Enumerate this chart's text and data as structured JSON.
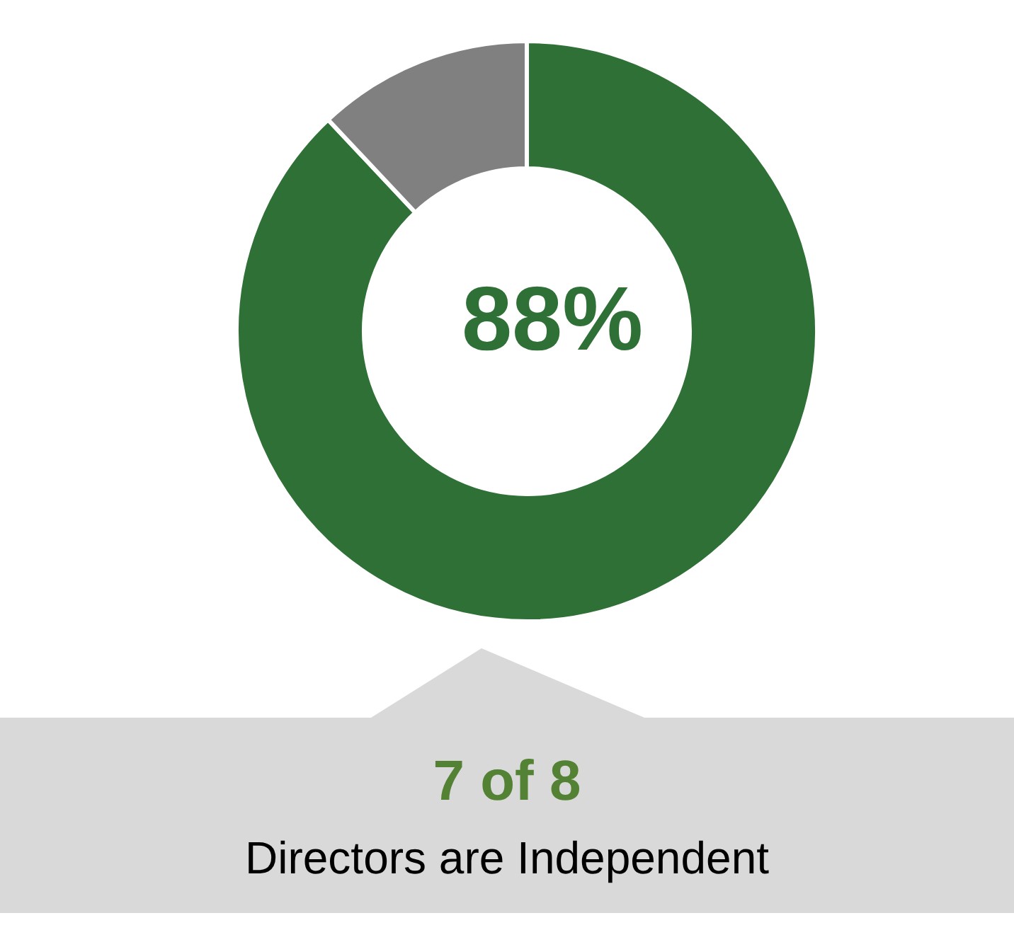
{
  "chart_data": {
    "type": "donut",
    "categories": [
      null,
      null
    ],
    "values": [
      88,
      12
    ],
    "colors": [
      "#2e7035",
      "#808080"
    ],
    "annotations": [
      "88%",
      "7 of 8",
      "Directors are Independent"
    ]
  }
}
